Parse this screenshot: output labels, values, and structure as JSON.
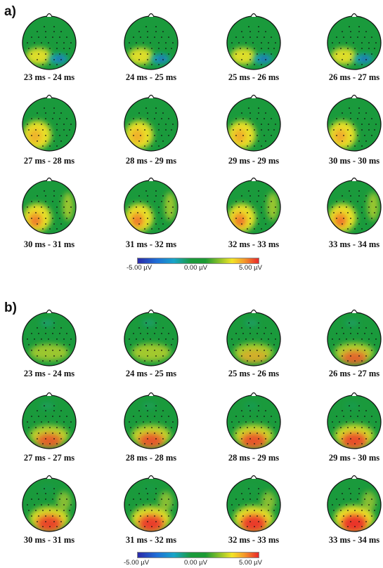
{
  "panels": [
    {
      "label": "a)",
      "captions": [
        "23 ms - 24 ms",
        "24 ms - 25 ms",
        "25 ms - 26 ms",
        "26 ms - 27 ms",
        "27 ms - 28 ms",
        "28 ms - 29 ms",
        "29 ms - 29 ms",
        "30 ms - 30 ms",
        "30 ms - 31 ms",
        "31 ms - 32 ms",
        "32 ms - 33 ms",
        "33 ms - 34 ms"
      ],
      "colorbar": {
        "min": "-5.00 µV",
        "mid": "0.00 µV",
        "max": "5.00 µV"
      }
    },
    {
      "label": "b)",
      "captions": [
        "23 ms - 24 ms",
        "24 ms - 25 ms",
        "25 ms - 26 ms",
        "26 ms - 27 ms",
        "27 ms - 27 ms",
        "28 ms - 28 ms",
        "28 ms - 29 ms",
        "29 ms - 30 ms",
        "30 ms - 31 ms",
        "31 ms - 32 ms",
        "32 ms - 33 ms",
        "33 ms - 34 ms"
      ],
      "colorbar": {
        "min": "-5.00 µV",
        "mid": "0.00 µV",
        "max": "5.00 µV"
      }
    }
  ],
  "colors": {
    "negative_strong": "#2a2aa8",
    "negative": "#19a4c8",
    "neutral": "#1a9a3c",
    "positive_weak": "#f2e427",
    "positive": "#f39a2a",
    "positive_strong": "#e8282a"
  }
}
